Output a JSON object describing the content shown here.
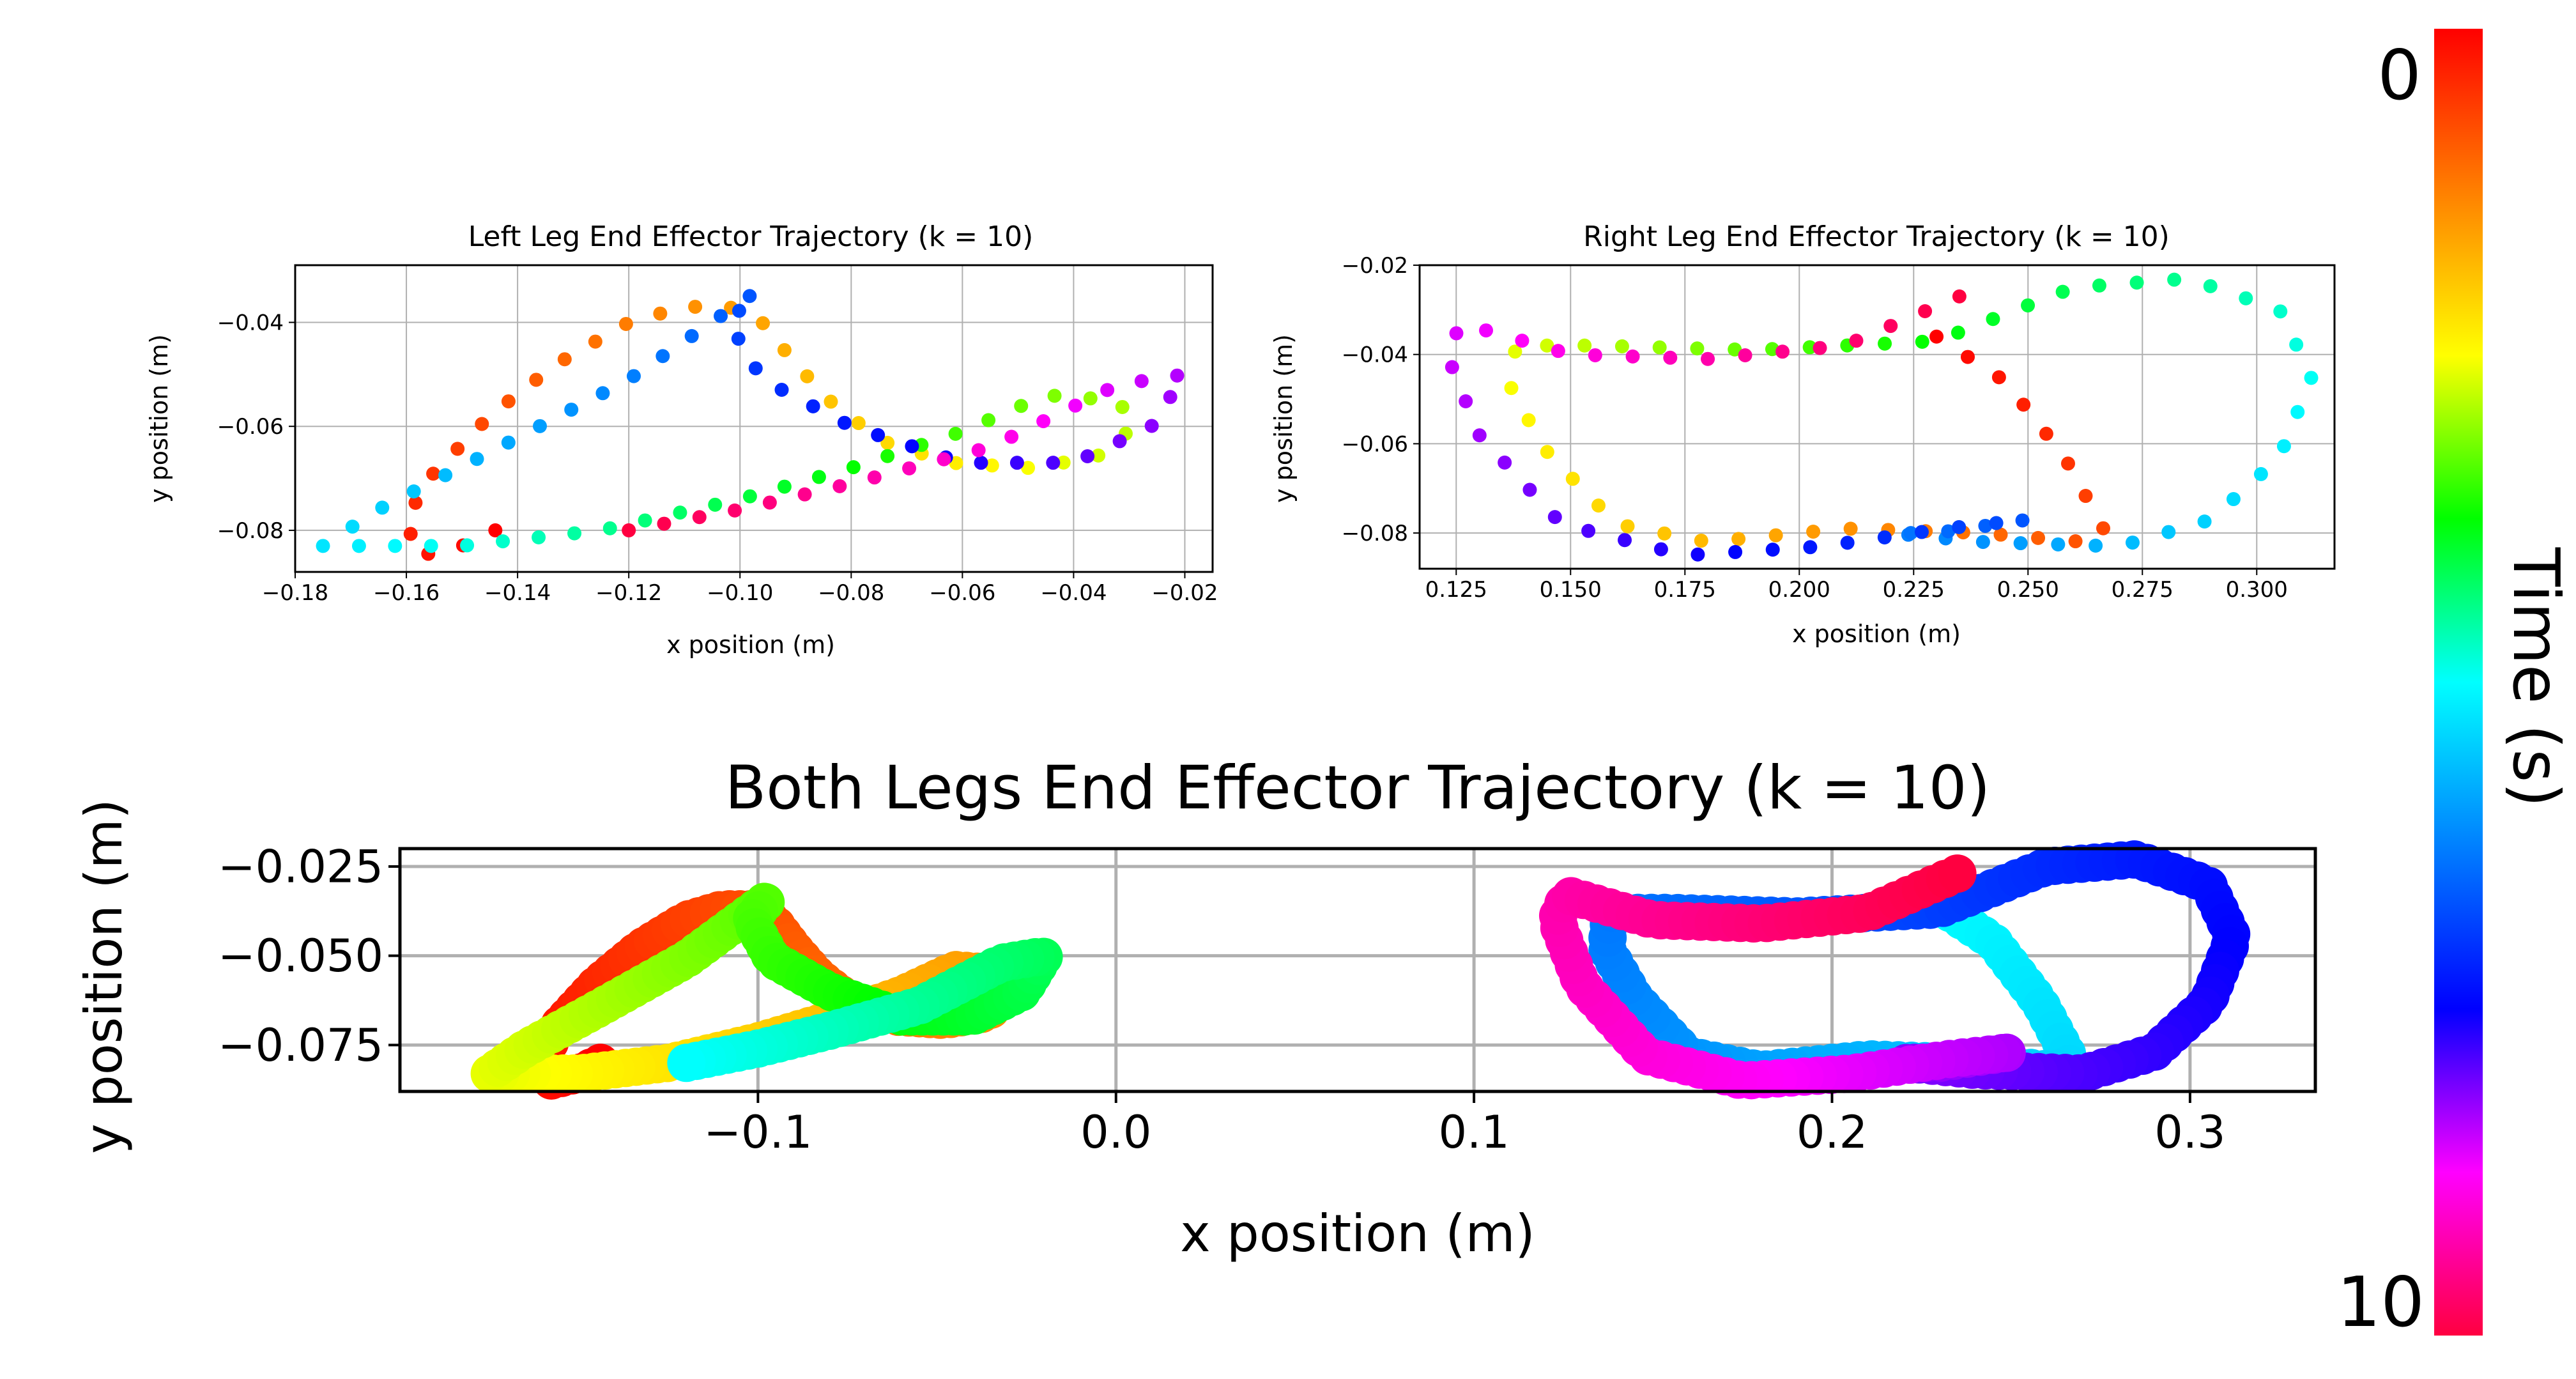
{
  "colorbar": {
    "label": "Time (s)",
    "tick_top": "0",
    "tick_bottom": "10",
    "stops": [
      "#ff0000",
      "#ff8000",
      "#ffff00",
      "#00ff00",
      "#00ffff",
      "#0080ff",
      "#0000ff",
      "#ff00ff",
      "#ff0040"
    ]
  },
  "chart_data": [
    {
      "type": "scatter",
      "title": "Left Leg End Effector Trajectory (k = 10)",
      "xlabel": "x position (m)",
      "ylabel": "y position (m)",
      "xlim": [
        -0.18,
        -0.015
      ],
      "ylim": [
        -0.088,
        -0.029
      ],
      "xticks": [
        -0.18,
        -0.16,
        -0.14,
        -0.12,
        -0.1,
        -0.08,
        -0.06,
        -0.04,
        -0.02
      ],
      "xticklabels": [
        "−0.18",
        "−0.16",
        "−0.14",
        "−0.12",
        "−0.10",
        "−0.08",
        "−0.06",
        "−0.04",
        "−0.02"
      ],
      "yticks": [
        -0.04,
        -0.06,
        -0.08
      ],
      "yticklabels": [
        "−0.04",
        "−0.06",
        "−0.08"
      ],
      "grid": true,
      "series": [
        {
          "points": [
            [
              -0.144,
              -0.08
            ],
            [
              -0.15,
              -0.083
            ],
            [
              -0.158,
              -0.085
            ],
            [
              -0.16,
              -0.078
            ],
            [
              -0.156,
              -0.07
            ],
            [
              -0.145,
              -0.058
            ],
            [
              -0.133,
              -0.048
            ],
            [
              -0.12,
              -0.04
            ],
            [
              -0.11,
              -0.037
            ],
            [
              -0.102,
              -0.037
            ],
            [
              -0.096,
              -0.04
            ],
            [
              -0.09,
              -0.048
            ],
            [
              -0.083,
              -0.056
            ],
            [
              -0.074,
              -0.063
            ],
            [
              -0.062,
              -0.067
            ],
            [
              -0.048,
              -0.068
            ],
            [
              -0.036,
              -0.066
            ],
            [
              -0.029,
              -0.06
            ],
            [
              -0.032,
              -0.055
            ],
            [
              -0.045,
              -0.054
            ],
            [
              -0.06,
              -0.061
            ],
            [
              -0.08,
              -0.068
            ],
            [
              -0.1,
              -0.074
            ],
            [
              -0.125,
              -0.08
            ],
            [
              -0.15,
              -0.083
            ],
            [
              -0.175,
              -0.083
            ],
            [
              -0.165,
              -0.076
            ],
            [
              -0.145,
              -0.065
            ],
            [
              -0.12,
              -0.051
            ],
            [
              -0.097,
              -0.034
            ],
            [
              -0.102,
              -0.04
            ],
            [
              -0.096,
              -0.051
            ],
            [
              -0.08,
              -0.06
            ],
            [
              -0.06,
              -0.067
            ],
            [
              -0.04,
              -0.067
            ],
            [
              -0.026,
              -0.06
            ],
            [
              -0.02,
              -0.05
            ],
            [
              -0.032,
              -0.052
            ],
            [
              -0.055,
              -0.064
            ],
            [
              -0.08,
              -0.071
            ],
            [
              -0.1,
              -0.076
            ],
            [
              -0.12,
              -0.08
            ]
          ]
        }
      ]
    },
    {
      "type": "scatter",
      "title": "Right Leg End Effector Trajectory (k = 10)",
      "xlabel": "x position (m)",
      "ylabel": "y position (m)",
      "xlim": [
        0.117,
        0.317
      ],
      "ylim": [
        -0.088,
        -0.02
      ],
      "xticks": [
        0.125,
        0.15,
        0.175,
        0.2,
        0.225,
        0.25,
        0.275,
        0.3
      ],
      "xticklabels": [
        "0.125",
        "0.150",
        "0.175",
        "0.200",
        "0.225",
        "0.250",
        "0.275",
        "0.300"
      ],
      "yticks": [
        -0.02,
        -0.04,
        -0.06,
        -0.08
      ],
      "yticklabels": [
        "−0.02",
        "−0.04",
        "−0.06",
        "−0.08"
      ],
      "grid": true,
      "series": [
        {
          "points": [
            [
              0.23,
              -0.036
            ],
            [
              0.245,
              -0.046
            ],
            [
              0.258,
              -0.063
            ],
            [
              0.267,
              -0.08
            ],
            [
              0.262,
              -0.082
            ],
            [
              0.24,
              -0.08
            ],
            [
              0.21,
              -0.079
            ],
            [
              0.18,
              -0.082
            ],
            [
              0.16,
              -0.078
            ],
            [
              0.145,
              -0.062
            ],
            [
              0.137,
              -0.048
            ],
            [
              0.138,
              -0.038
            ],
            [
              0.155,
              -0.038
            ],
            [
              0.19,
              -0.039
            ],
            [
              0.23,
              -0.037
            ],
            [
              0.26,
              -0.025
            ],
            [
              0.285,
              -0.023
            ],
            [
              0.305,
              -0.03
            ],
            [
              0.312,
              -0.045
            ],
            [
              0.305,
              -0.063
            ],
            [
              0.29,
              -0.077
            ],
            [
              0.27,
              -0.083
            ],
            [
              0.24,
              -0.082
            ],
            [
              0.22,
              -0.08
            ],
            [
              0.23,
              -0.08
            ],
            [
              0.25,
              -0.077
            ],
            [
              0.232,
              -0.079
            ],
            [
              0.205,
              -0.083
            ],
            [
              0.175,
              -0.085
            ],
            [
              0.148,
              -0.078
            ],
            [
              0.13,
              -0.058
            ],
            [
              0.123,
              -0.04
            ],
            [
              0.126,
              -0.033
            ],
            [
              0.15,
              -0.04
            ],
            [
              0.18,
              -0.041
            ],
            [
              0.21,
              -0.038
            ],
            [
              0.235,
              -0.027
            ]
          ]
        }
      ]
    },
    {
      "type": "scatter",
      "title": "Both Legs End Effector Trajectory (k = 10)",
      "xlabel": "x position (m)",
      "ylabel": "y position (m)",
      "xlim": [
        -0.2,
        0.335
      ],
      "ylim": [
        -0.088,
        -0.02
      ],
      "xticks": [
        -0.1,
        0.0,
        0.1,
        0.2,
        0.3
      ],
      "xticklabels": [
        "−0.1",
        "0.0",
        "0.1",
        "0.2",
        "0.3"
      ],
      "yticks": [
        -0.025,
        -0.05,
        -0.075
      ],
      "yticklabels": [
        "−0.025",
        "−0.050",
        "−0.075"
      ],
      "grid": true,
      "series": [
        {
          "name": "",
          "points": []
        }
      ]
    }
  ]
}
